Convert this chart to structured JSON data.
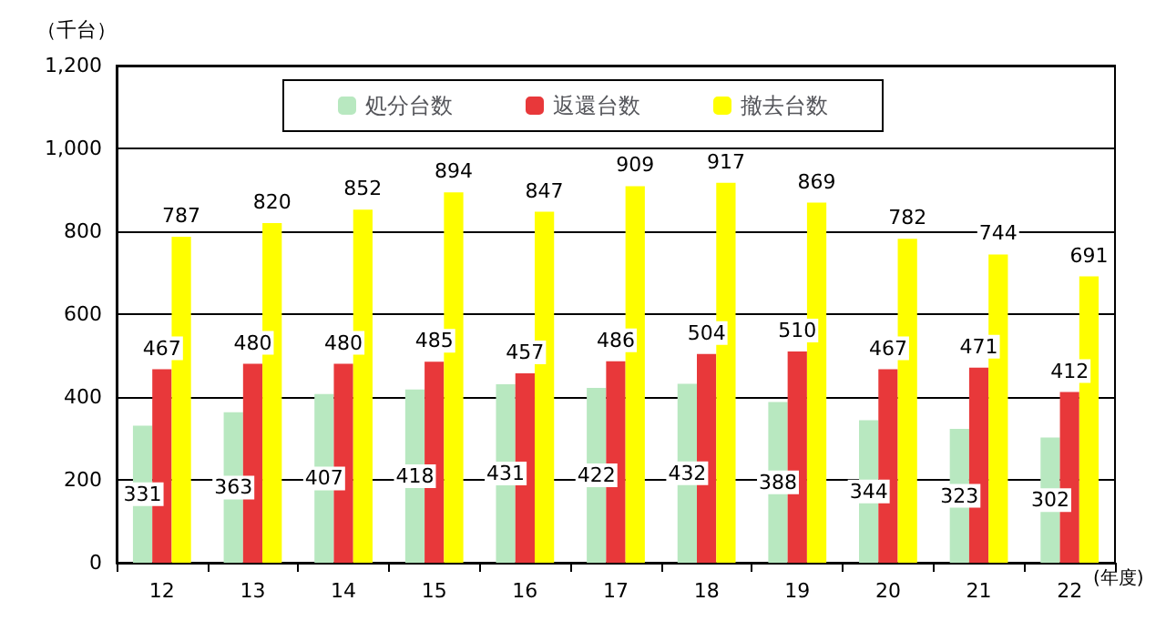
{
  "chart_data": {
    "type": "bar",
    "ylabel": "（千台）",
    "xlabel": "(年度)",
    "categories": [
      "12",
      "13",
      "14",
      "15",
      "16",
      "17",
      "18",
      "19",
      "20",
      "21",
      "22"
    ],
    "series": [
      {
        "name": "処分台数",
        "color": "#b8e8c0",
        "values": [
          331,
          363,
          407,
          418,
          431,
          422,
          432,
          388,
          344,
          323,
          302
        ]
      },
      {
        "name": "返還台数",
        "color": "#e8383a",
        "values": [
          467,
          480,
          480,
          485,
          457,
          486,
          504,
          510,
          467,
          471,
          412
        ]
      },
      {
        "name": "撤去台数",
        "color": "#ffff00",
        "values": [
          787,
          820,
          852,
          894,
          847,
          909,
          917,
          869,
          782,
          744,
          691
        ]
      }
    ],
    "ylim": [
      0,
      1200
    ],
    "yticks": [
      0,
      200,
      400,
      600,
      800,
      {
        "value": 1000,
        "label": "1,000"
      },
      {
        "value": 1200,
        "label": "1,200"
      }
    ],
    "grid": "y",
    "legend": "top",
    "data_labels": true
  }
}
